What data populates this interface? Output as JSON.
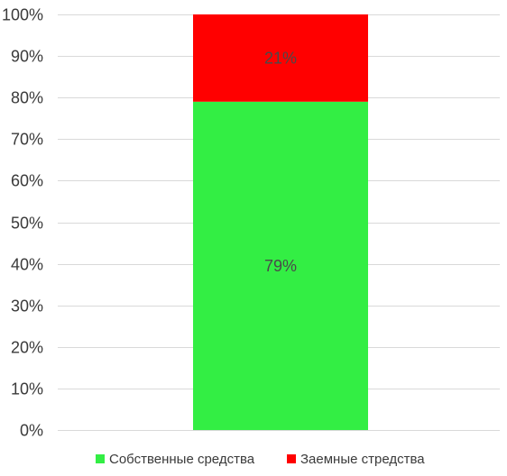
{
  "chart_data": {
    "type": "bar",
    "stacked": true,
    "percent": true,
    "categories": [
      ""
    ],
    "series": [
      {
        "name": "Собственные средства",
        "values": [
          79
        ],
        "color": "#33ee44",
        "label": "79%"
      },
      {
        "name": "Заемные стредства",
        "values": [
          21
        ],
        "color": "#ff0000",
        "label": "21%"
      }
    ],
    "ylim": [
      0,
      100
    ],
    "yticks": [
      "0%",
      "10%",
      "20%",
      "30%",
      "40%",
      "50%",
      "60%",
      "70%",
      "80%",
      "90%",
      "100%"
    ],
    "grid": true,
    "legend_position": "bottom",
    "title": "",
    "xlabel": "",
    "ylabel": ""
  }
}
